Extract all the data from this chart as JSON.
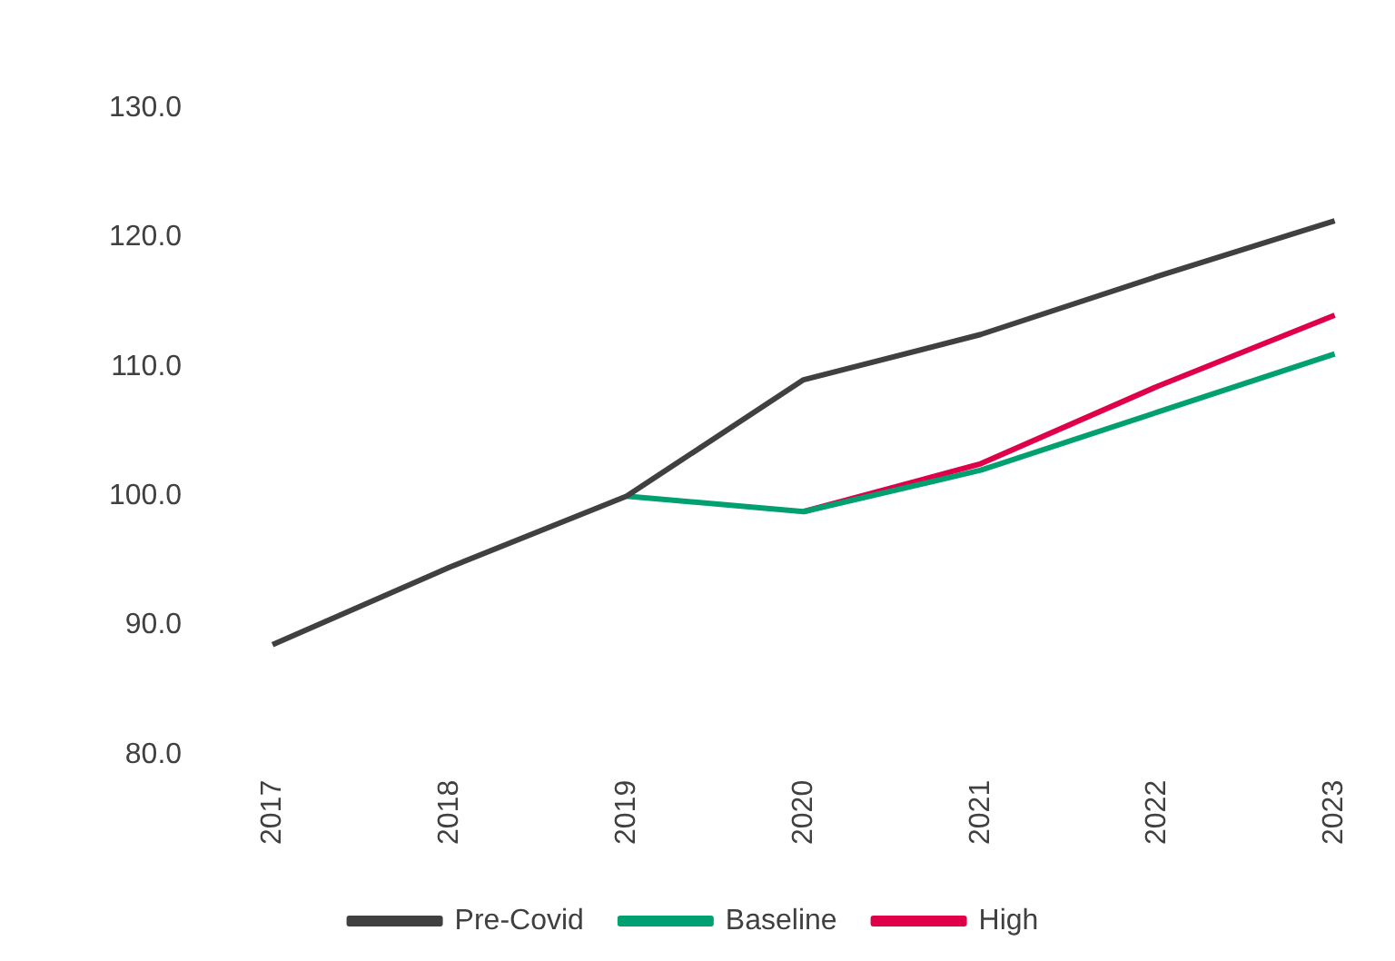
{
  "chart_data": {
    "type": "line",
    "categories": [
      "2017",
      "2018",
      "2019",
      "2020",
      "2021",
      "2022",
      "2023"
    ],
    "series": [
      {
        "name": "Pre-Covid",
        "color": "#404040",
        "values": [
          88.5,
          94.5,
          100,
          109,
          112.5,
          117,
          121.3
        ]
      },
      {
        "name": "Baseline",
        "color": "#00a070",
        "values": [
          null,
          null,
          100,
          98.8,
          102,
          106.5,
          111
        ]
      },
      {
        "name": "High",
        "color": "#e0004a",
        "values": [
          null,
          null,
          null,
          98.8,
          102.5,
          108.5,
          114
        ]
      }
    ],
    "ylim": [
      80,
      130
    ],
    "yticks": [
      {
        "value": 80,
        "label": "80.0"
      },
      {
        "value": 90,
        "label": "90.0"
      },
      {
        "value": 100,
        "label": "100.0"
      },
      {
        "value": 110,
        "label": "110.0"
      },
      {
        "value": 120,
        "label": "120.0"
      },
      {
        "value": 130,
        "label": "130.0"
      }
    ],
    "grid": false,
    "legend": "bottom",
    "marker": "none",
    "line_style": "solid"
  }
}
